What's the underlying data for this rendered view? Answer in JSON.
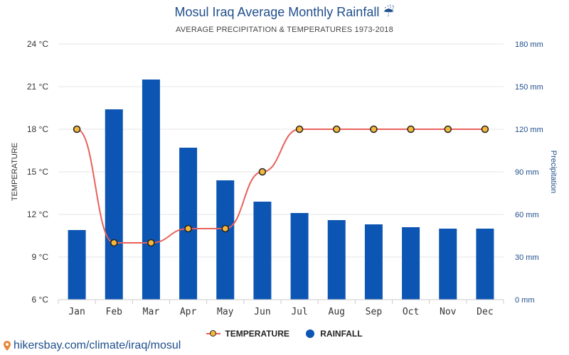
{
  "header": {
    "title": "Mosul Iraq Average Monthly Rainfall ☔",
    "subtitle": "AVERAGE PRECIPITATION & TEMPERATURES 1973-2018"
  },
  "legend": {
    "temperature_label": "TEMPERATURE",
    "rainfall_label": "RAINFALL"
  },
  "footer": {
    "link_text": "hikersbay.com/climate/iraq/mosul"
  },
  "colors": {
    "bar": "#0d55b3",
    "line": "#e8615a",
    "marker": "#f6b83a",
    "grid": "#e6e6e6",
    "brand": "#1f4e8c"
  },
  "chart_data": {
    "type": "bar",
    "categories": [
      "Jan",
      "Feb",
      "Mar",
      "Apr",
      "May",
      "Jun",
      "Jul",
      "Aug",
      "Sep",
      "Oct",
      "Nov",
      "Dec"
    ],
    "series": [
      {
        "name": "RAINFALL",
        "type": "bar",
        "axis": "right",
        "unit": "mm",
        "values": [
          49,
          134,
          155,
          107,
          84,
          69,
          61,
          56,
          53,
          51,
          50,
          50
        ]
      },
      {
        "name": "TEMPERATURE",
        "type": "line",
        "axis": "left",
        "unit": "°C",
        "values": [
          18,
          10,
          10,
          11,
          11,
          15,
          18,
          18,
          18,
          18,
          18,
          18
        ]
      }
    ],
    "ylabel_left": "TEMPERATURE",
    "ylabel_right": "Precipitation",
    "ylim_left": [
      6,
      24
    ],
    "ylim_right": [
      0,
      180
    ],
    "yticks_left": [
      "24 °C",
      "21 °C",
      "18 °C",
      "15 °C",
      "12 °C",
      "9 °C",
      "6 °C"
    ],
    "yticks_right": [
      "180 mm",
      "150 mm",
      "120 mm",
      "90 mm",
      "60 mm",
      "30 mm",
      "0 mm"
    ],
    "grid": true,
    "legend_position": "bottom"
  }
}
